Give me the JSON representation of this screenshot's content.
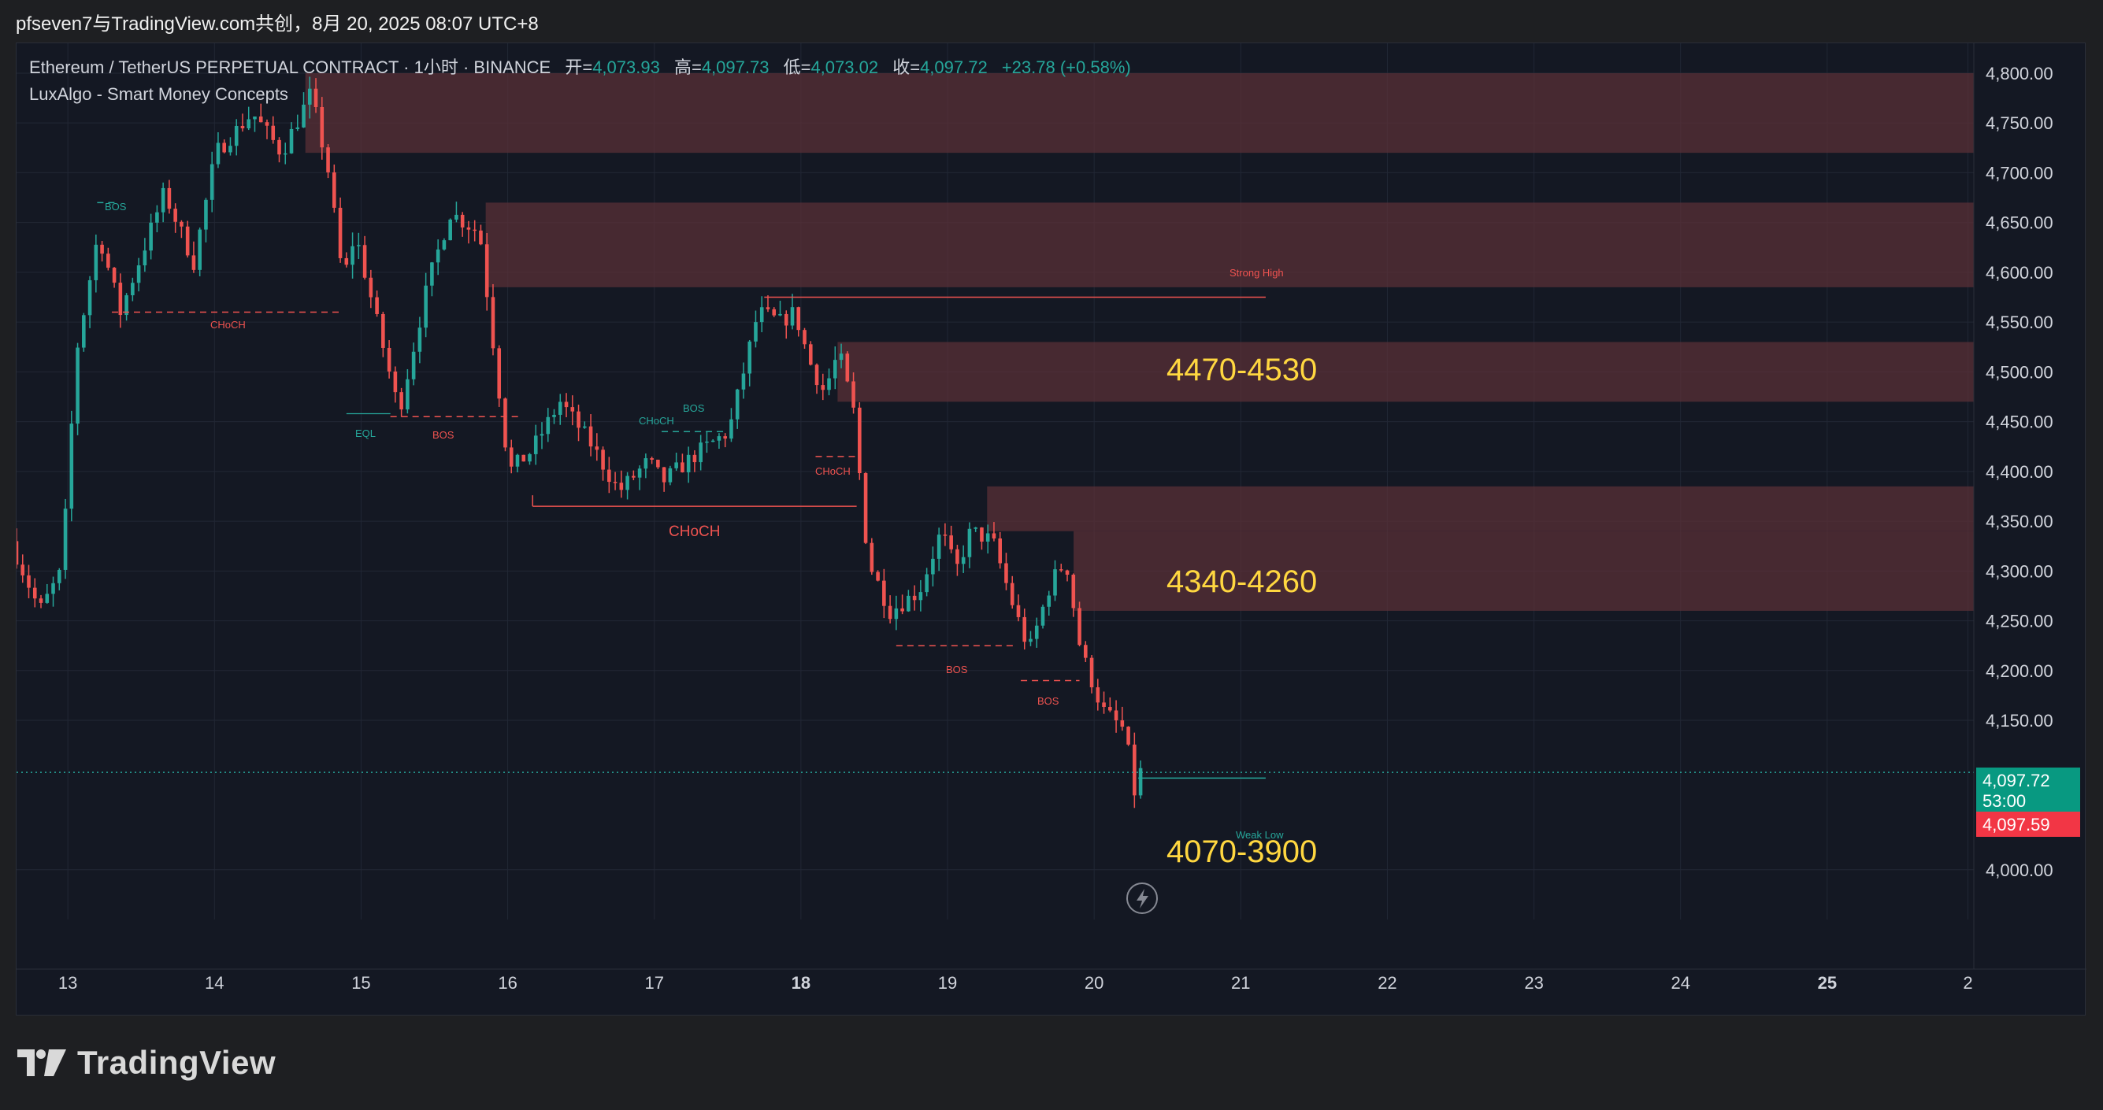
{
  "header": {
    "share_text": "pfseven7与TradingView.com共创，8月 20, 2025 08:07 UTC+8"
  },
  "legend": {
    "symbol": "Ethereum / TetherUS PERPETUAL CONTRACT · 1小时 · BINANCE",
    "open_label": "开=",
    "open_value": "4,073.93",
    "high_label": "高=",
    "high_value": "4,097.73",
    "low_label": "低=",
    "low_value": "4,073.02",
    "close_label": "收=",
    "close_value": "4,097.72",
    "change": "+23.78 (+0.58%)",
    "indicator": "LuxAlgo - Smart Money Concepts"
  },
  "price_scale": {
    "ticks": [
      "4,800.00",
      "4,750.00",
      "4,700.00",
      "4,650.00",
      "4,600.00",
      "4,550.00",
      "4,500.00",
      "4,450.00",
      "4,400.00",
      "4,350.00",
      "4,300.00",
      "4,250.00",
      "4,200.00",
      "4,150.00",
      "4,000.00"
    ],
    "last_price": "4,097.72",
    "countdown": "53:00",
    "bid_price": "4,097.59"
  },
  "time_scale": {
    "ticks": [
      "13",
      "14",
      "15",
      "16",
      "17",
      "18",
      "19",
      "20",
      "21",
      "22",
      "23",
      "24",
      "25",
      "2"
    ]
  },
  "annotations": {
    "zone1": "4470-4530",
    "zone2": "4340-4260",
    "zone3": "4070-3900",
    "strong_high": "Strong High",
    "weak_low": "Weak Low",
    "bos": "BOS",
    "choch": "CHoCH",
    "eql": "EQL"
  },
  "colors": {
    "up": "#26a69a",
    "down": "#ef5350",
    "zone_fill": "#5b3038",
    "annotation_yellow": "#ffd740",
    "background": "#141823"
  },
  "brand": {
    "name": "TradingView"
  },
  "chart_data": {
    "type": "candlestick",
    "symbol": "ETHUSDT.P",
    "interval": "1h",
    "ylim": [
      3950,
      4830
    ],
    "x_range_days": [
      12.65,
      26.0
    ],
    "supply_zones": [
      [
        4720,
        4800
      ],
      [
        4585,
        4670
      ],
      [
        4470,
        4530
      ],
      [
        4340,
        4385
      ],
      [
        4260,
        4340
      ]
    ],
    "levels": {
      "strong_high": 4575,
      "weak_low": 4092,
      "choch_major": 4365
    },
    "swing_path": [
      [
        12.65,
        4330
      ],
      [
        12.85,
        4260
      ],
      [
        13.0,
        4300
      ],
      [
        13.1,
        4520
      ],
      [
        13.25,
        4640
      ],
      [
        13.4,
        4560
      ],
      [
        13.7,
        4680
      ],
      [
        13.9,
        4610
      ],
      [
        14.05,
        4720
      ],
      [
        14.3,
        4760
      ],
      [
        14.5,
        4720
      ],
      [
        14.7,
        4780
      ],
      [
        14.82,
        4700
      ],
      [
        14.92,
        4590
      ],
      [
        15.0,
        4640
      ],
      [
        15.2,
        4520
      ],
      [
        15.3,
        4460
      ],
      [
        15.5,
        4590
      ],
      [
        15.65,
        4660
      ],
      [
        15.85,
        4640
      ],
      [
        15.95,
        4520
      ],
      [
        16.05,
        4400
      ],
      [
        16.2,
        4420
      ],
      [
        16.4,
        4470
      ],
      [
        16.6,
        4430
      ],
      [
        16.8,
        4380
      ],
      [
        17.0,
        4410
      ],
      [
        17.1,
        4390
      ],
      [
        17.35,
        4420
      ],
      [
        17.55,
        4440
      ],
      [
        17.75,
        4560
      ],
      [
        17.9,
        4550
      ],
      [
        18.0,
        4560
      ],
      [
        18.1,
        4510
      ],
      [
        18.2,
        4480
      ],
      [
        18.3,
        4520
      ],
      [
        18.4,
        4460
      ],
      [
        18.5,
        4310
      ],
      [
        18.65,
        4260
      ],
      [
        18.85,
        4280
      ],
      [
        19.0,
        4340
      ],
      [
        19.1,
        4300
      ],
      [
        19.2,
        4340
      ],
      [
        19.35,
        4330
      ],
      [
        19.5,
        4260
      ],
      [
        19.6,
        4220
      ],
      [
        19.75,
        4290
      ],
      [
        19.85,
        4310
      ],
      [
        19.95,
        4220
      ],
      [
        20.1,
        4160
      ],
      [
        20.25,
        4140
      ],
      [
        20.32,
        4075
      ],
      [
        20.34,
        4098
      ]
    ]
  }
}
